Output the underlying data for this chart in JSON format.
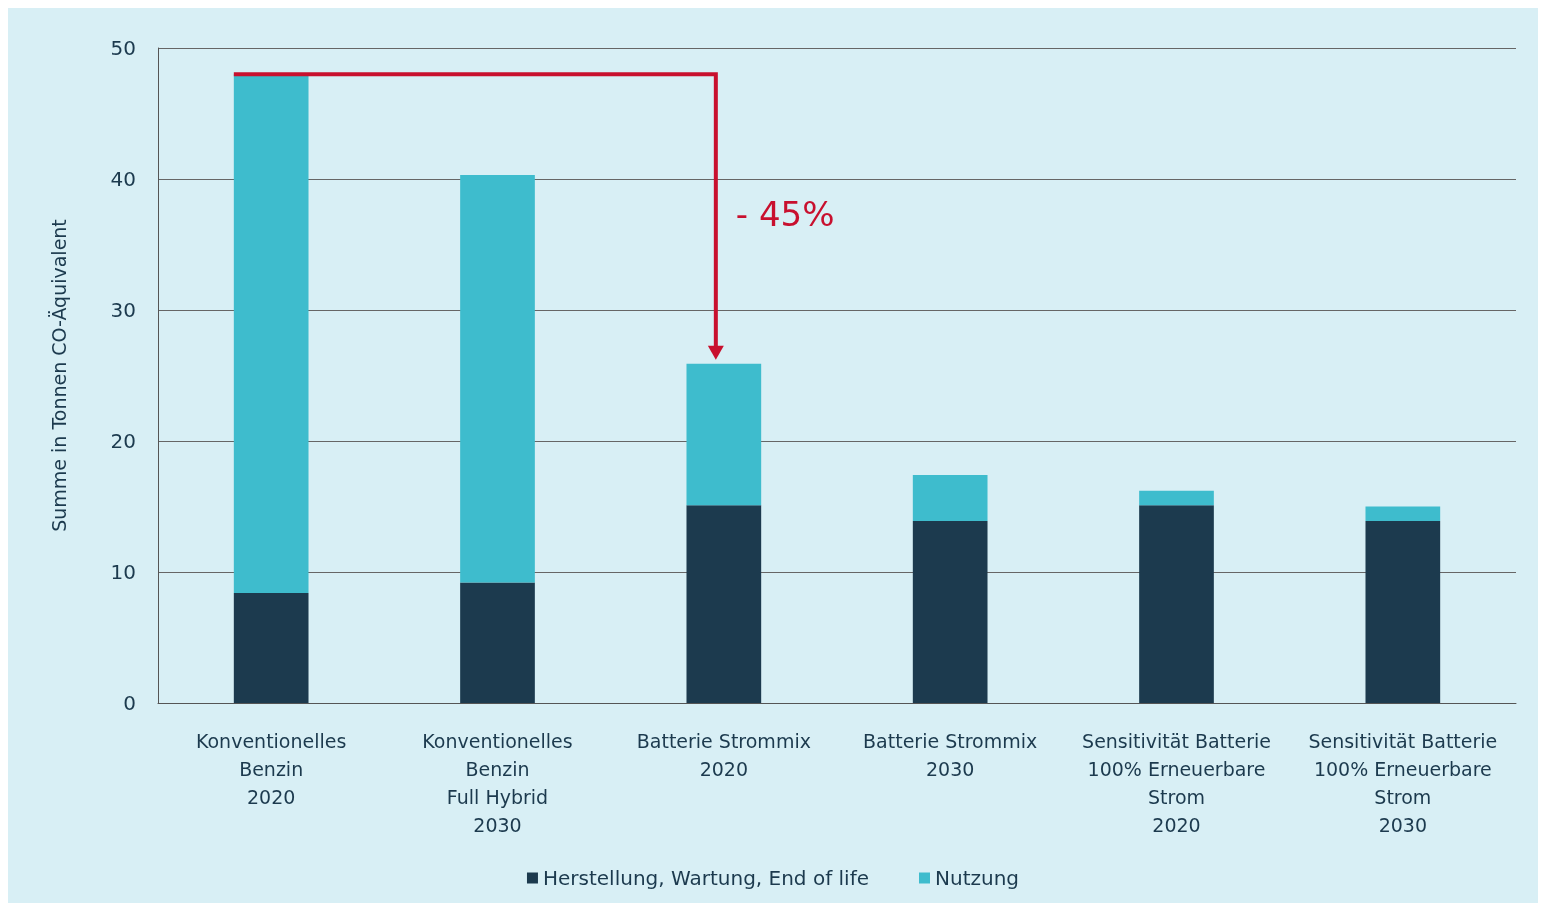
{
  "chart_data": {
    "type": "bar",
    "stacked": true,
    "ylabel": "Summe in Tonnen CO-Äquivalent",
    "categories": [
      "Konventionelles\nBenzin\n2020",
      "Konventionelles\nBenzin\nFull Hybrid\n2030",
      "Batterie Strommix\n2020",
      "Batterie Strommix\n2030",
      "Sensitivität Batterie\n100% Erneuerbare\nStrom\n2020",
      "Sensitivität Batterie\n100% Erneuerbare\nStrom\n2030"
    ],
    "series": [
      {
        "name": "Herstellung, Wartung, End of life",
        "color": "#1c3a4e",
        "values": [
          8.4,
          9.2,
          15.1,
          13.9,
          15.1,
          13.9
        ]
      },
      {
        "name": "Nutzung",
        "color": "#3ebccd",
        "values": [
          39.6,
          31.1,
          10.8,
          3.5,
          1.1,
          1.1
        ]
      }
    ],
    "ylim": [
      0,
      50
    ],
    "yticks": [
      0,
      10,
      20,
      30,
      40,
      50
    ],
    "grid": "y",
    "legend": "bottom",
    "annotations": [
      "- 45%"
    ]
  }
}
